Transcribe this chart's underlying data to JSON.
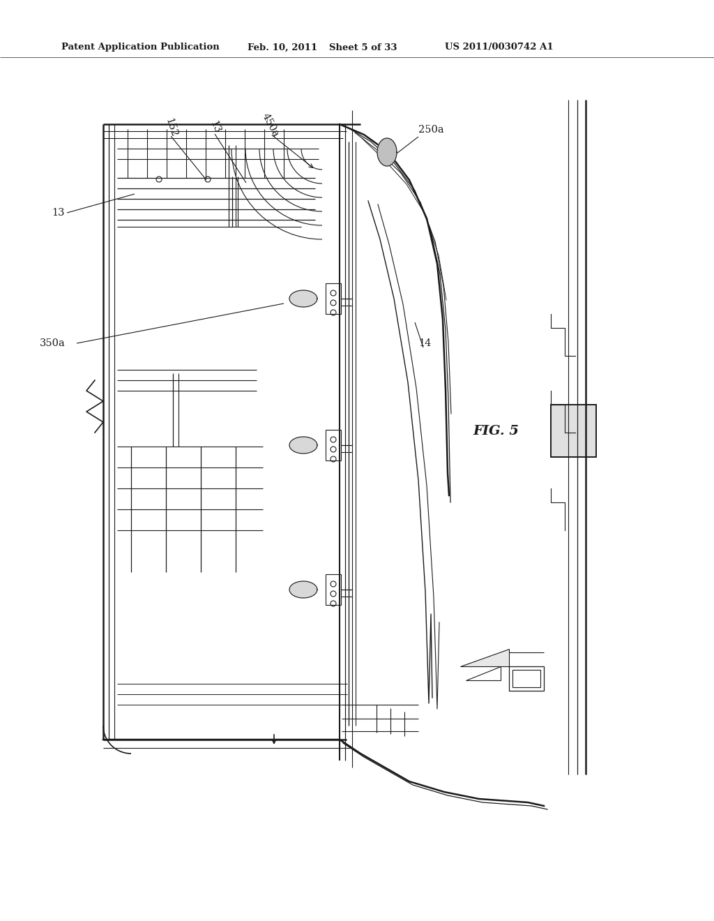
{
  "bg_color": "#ffffff",
  "line_color": "#1a1a1a",
  "header_text": "Patent Application Publication",
  "header_date": "Feb. 10, 2011",
  "header_sheet": "Sheet 5 of 33",
  "header_patent": "US 2011/0030742 A1",
  "fig_label": "FIG. 5"
}
